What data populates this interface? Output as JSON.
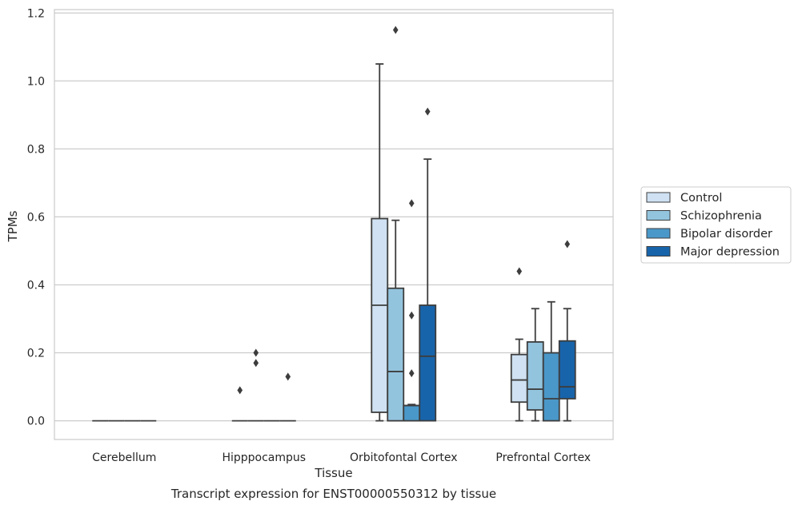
{
  "chart_data": {
    "type": "box",
    "title": "Transcript expression for ENST00000550312 by tissue",
    "xlabel": "Tissue",
    "ylabel": "TPMs",
    "ylim": [
      -0.055,
      1.21
    ],
    "yticks": [
      0.0,
      0.2,
      0.4,
      0.6,
      0.8,
      1.0,
      1.2
    ],
    "ytick_labels": [
      "0.0",
      "0.2",
      "0.4",
      "0.6",
      "0.8",
      "1.0",
      "1.2"
    ],
    "grid": "horizontal",
    "legend_position": "right",
    "categories": [
      "Cerebellum",
      "Hipppocampus",
      "Orbitofontal Cortex",
      "Prefrontal Cortex"
    ],
    "series": [
      {
        "name": "Control",
        "color": "#cfe1f2",
        "boxes": [
          {
            "min": 0,
            "q1": 0,
            "median": 0,
            "q3": 0,
            "max": 0,
            "outliers": []
          },
          {
            "min": 0,
            "q1": 0,
            "median": 0,
            "q3": 0,
            "max": 0,
            "outliers": [
              0.09
            ]
          },
          {
            "min": 0,
            "q1": 0.025,
            "median": 0.34,
            "q3": 0.595,
            "max": 1.05,
            "outliers": []
          },
          {
            "min": 0,
            "q1": 0.055,
            "median": 0.12,
            "q3": 0.195,
            "max": 0.24,
            "outliers": [
              0.44
            ]
          }
        ]
      },
      {
        "name": "Schizophrenia",
        "color": "#93c4de",
        "boxes": [
          {
            "min": 0,
            "q1": 0,
            "median": 0,
            "q3": 0,
            "max": 0,
            "outliers": []
          },
          {
            "min": 0,
            "q1": 0,
            "median": 0,
            "q3": 0,
            "max": 0,
            "outliers": [
              0.2,
              0.17
            ]
          },
          {
            "min": 0,
            "q1": 0,
            "median": 0.145,
            "q3": 0.39,
            "max": 0.59,
            "outliers": [
              1.15
            ]
          },
          {
            "min": 0,
            "q1": 0.032,
            "median": 0.093,
            "q3": 0.232,
            "max": 0.33,
            "outliers": []
          }
        ]
      },
      {
        "name": "Bipolar disorder",
        "color": "#4a98c9",
        "boxes": [
          {
            "min": 0,
            "q1": 0,
            "median": 0,
            "q3": 0,
            "max": 0,
            "outliers": []
          },
          {
            "min": 0,
            "q1": 0,
            "median": 0,
            "q3": 0,
            "max": 0,
            "outliers": []
          },
          {
            "min": 0,
            "q1": 0,
            "median": 0.045,
            "q3": 0.045,
            "max": 0.048,
            "outliers": [
              0.64,
              0.31,
              0.14
            ]
          },
          {
            "min": 0,
            "q1": 0,
            "median": 0.065,
            "q3": 0.2,
            "max": 0.35,
            "outliers": []
          }
        ]
      },
      {
        "name": "Major depression",
        "color": "#1764ab",
        "boxes": [
          {
            "min": 0,
            "q1": 0,
            "median": 0,
            "q3": 0,
            "max": 0,
            "outliers": []
          },
          {
            "min": 0,
            "q1": 0,
            "median": 0,
            "q3": 0,
            "max": 0,
            "outliers": [
              0.13
            ]
          },
          {
            "min": 0,
            "q1": 0,
            "median": 0.19,
            "q3": 0.34,
            "max": 0.77,
            "outliers": [
              0.91
            ]
          },
          {
            "min": 0,
            "q1": 0.065,
            "median": 0.1,
            "q3": 0.235,
            "max": 0.33,
            "outliers": [
              0.52
            ]
          }
        ]
      }
    ]
  }
}
